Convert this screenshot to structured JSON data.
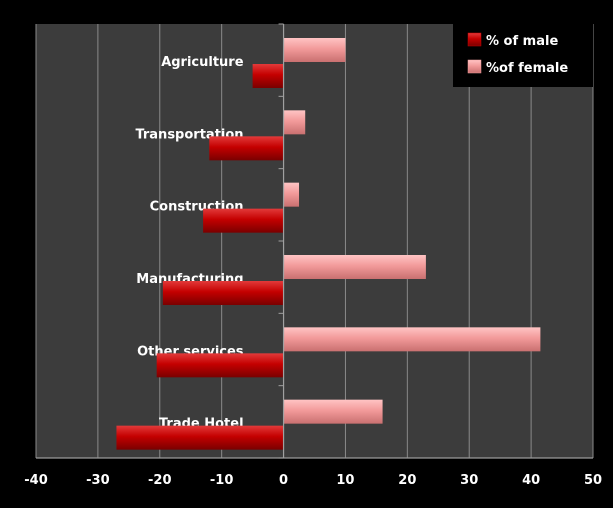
{
  "chart_data": {
    "type": "bar",
    "orientation": "horizontal",
    "categories": [
      "Agriculture",
      "Transportation",
      "Construction",
      "Manufacturing",
      "Other services",
      "Trade Hotel"
    ],
    "series": [
      {
        "name": "% of male",
        "values": [
          -5,
          -12,
          -13,
          -19.5,
          -20.5,
          -27
        ],
        "color": "#cc0000"
      },
      {
        "name": "%of female",
        "values": [
          10,
          3.5,
          2.5,
          23,
          41.5,
          16
        ],
        "color": "#f4a0a0"
      }
    ],
    "xlim": [
      -40,
      50
    ],
    "xticks": [
      "-40",
      "-30",
      "-20",
      "-10",
      "0",
      "10",
      "20",
      "30",
      "40",
      "50"
    ],
    "grid": true,
    "legend": "top-right",
    "colors": {
      "background": "#000000",
      "plot_area": "#3c3c3c",
      "gridline": "#8a8a8a",
      "text": "#ffffff"
    }
  }
}
